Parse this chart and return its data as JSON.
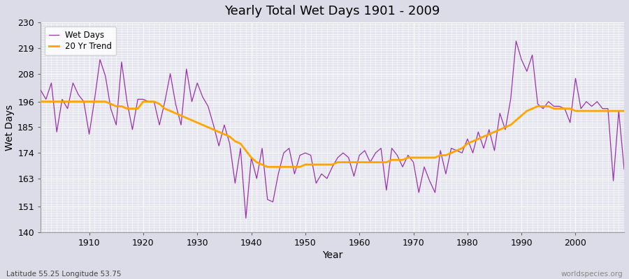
{
  "title": "Yearly Total Wet Days 1901 - 2009",
  "xlabel": "Year",
  "ylabel": "Wet Days",
  "subtitle": "Latitude 55.25 Longitude 53.75",
  "watermark": "worldspecies.org",
  "ylim": [
    140,
    230
  ],
  "yticks": [
    140,
    151,
    163,
    174,
    185,
    196,
    208,
    219,
    230
  ],
  "line_color": "#9933aa",
  "trend_color": "#FFA500",
  "bg_color": "#e0e0e8",
  "plot_bg_color": "#e8e8f0",
  "years": [
    1901,
    1902,
    1903,
    1904,
    1905,
    1906,
    1907,
    1908,
    1909,
    1910,
    1911,
    1912,
    1913,
    1914,
    1915,
    1916,
    1917,
    1918,
    1919,
    1920,
    1921,
    1922,
    1923,
    1924,
    1925,
    1926,
    1927,
    1928,
    1929,
    1930,
    1931,
    1932,
    1933,
    1934,
    1935,
    1936,
    1937,
    1938,
    1939,
    1940,
    1941,
    1942,
    1943,
    1944,
    1945,
    1946,
    1947,
    1948,
    1949,
    1950,
    1951,
    1952,
    1953,
    1954,
    1955,
    1956,
    1957,
    1958,
    1959,
    1960,
    1961,
    1962,
    1963,
    1964,
    1965,
    1966,
    1967,
    1968,
    1969,
    1970,
    1971,
    1972,
    1973,
    1974,
    1975,
    1976,
    1977,
    1978,
    1979,
    1980,
    1981,
    1982,
    1983,
    1984,
    1985,
    1986,
    1987,
    1988,
    1989,
    1990,
    1991,
    1992,
    1993,
    1994,
    1995,
    1996,
    1997,
    1998,
    1999,
    2000,
    2001,
    2002,
    2003,
    2004,
    2005,
    2006,
    2007,
    2008,
    2009
  ],
  "wet_days": [
    201,
    197,
    204,
    183,
    197,
    193,
    204,
    199,
    196,
    182,
    197,
    214,
    207,
    193,
    186,
    213,
    196,
    184,
    197,
    197,
    196,
    196,
    186,
    196,
    208,
    195,
    186,
    210,
    196,
    204,
    198,
    194,
    186,
    177,
    186,
    178,
    161,
    176,
    146,
    172,
    163,
    176,
    154,
    153,
    165,
    174,
    176,
    165,
    173,
    174,
    173,
    161,
    165,
    163,
    168,
    172,
    174,
    172,
    164,
    173,
    175,
    170,
    174,
    176,
    158,
    176,
    173,
    168,
    173,
    170,
    157,
    168,
    162,
    157,
    175,
    165,
    176,
    175,
    174,
    180,
    174,
    183,
    176,
    184,
    175,
    191,
    184,
    197,
    222,
    214,
    209,
    216,
    195,
    193,
    196,
    194,
    194,
    193,
    187,
    206,
    193,
    196,
    194,
    196,
    193,
    193,
    162,
    192,
    167
  ],
  "trend": [
    196,
    196,
    196,
    196,
    196,
    196,
    196,
    196,
    196,
    196,
    196,
    196,
    196,
    195,
    194,
    194,
    193,
    193,
    193,
    196,
    196,
    196,
    195,
    193,
    192,
    191,
    190,
    189,
    188,
    187,
    186,
    185,
    184,
    183,
    182,
    181,
    179,
    178,
    175,
    172,
    170,
    169,
    168,
    168,
    168,
    168,
    168,
    168,
    168,
    169,
    169,
    169,
    169,
    169,
    169,
    170,
    170,
    170,
    170,
    170,
    170,
    170,
    170,
    170,
    170,
    171,
    171,
    171,
    172,
    172,
    172,
    172,
    172,
    172,
    173,
    173,
    174,
    175,
    176,
    178,
    179,
    180,
    181,
    182,
    183,
    184,
    185,
    186,
    188,
    190,
    192,
    193,
    194,
    194,
    194,
    193,
    193,
    193,
    193,
    192,
    192,
    192,
    192,
    192,
    192,
    192,
    192,
    192,
    192
  ]
}
